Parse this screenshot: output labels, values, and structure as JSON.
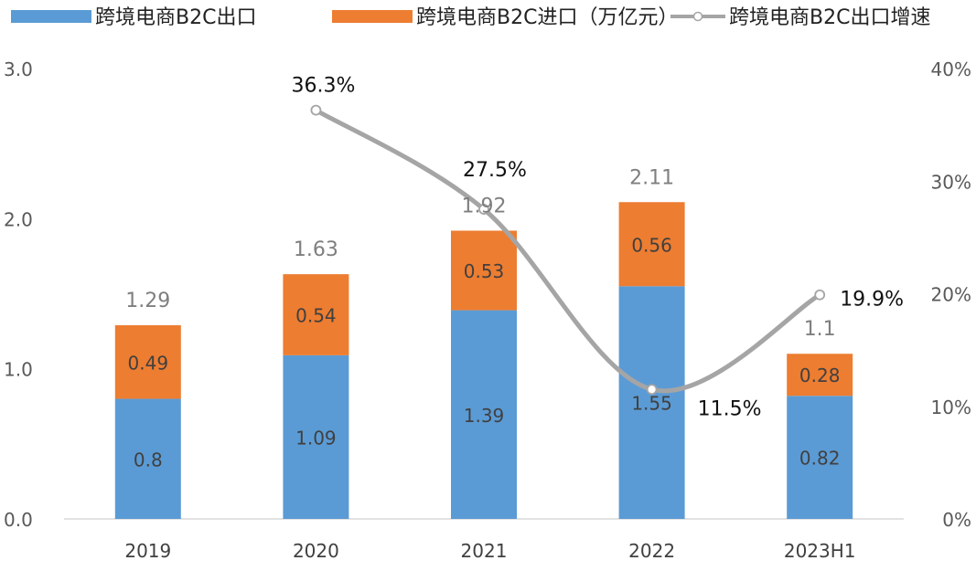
{
  "chart_data": {
    "type": "bar",
    "stacked": true,
    "categories": [
      "2019",
      "2020",
      "2021",
      "2022",
      "2023H1"
    ],
    "series": [
      {
        "name": "跨境电商B2C出口",
        "type": "bar",
        "axis": "left",
        "color": "#5B9BD5",
        "values": [
          0.8,
          1.09,
          1.39,
          1.55,
          0.82
        ],
        "labels": [
          "0.8",
          "1.09",
          "1.39",
          "1.55",
          "0.82"
        ]
      },
      {
        "name": "跨境电商B2C进口（万亿元）",
        "type": "bar",
        "axis": "left",
        "color": "#ED7D31",
        "values": [
          0.49,
          0.54,
          0.53,
          0.56,
          0.28
        ],
        "labels": [
          "0.49",
          "0.54",
          "0.53",
          "0.56",
          "0.28"
        ]
      },
      {
        "name": "跨境电商B2C出口增速",
        "type": "line",
        "axis": "right",
        "color": "#A5A5A5",
        "values": [
          null,
          36.3,
          27.5,
          11.5,
          19.9
        ],
        "labels": [
          "",
          "36.3%",
          "27.5%",
          "11.5%",
          "19.9%"
        ]
      }
    ],
    "totals": [
      "1.29",
      "1.63",
      "1.92",
      "2.11",
      "1.1"
    ],
    "y_left": {
      "ticks": [
        "0.0",
        "1.0",
        "2.0",
        "3.0"
      ],
      "range": [
        0,
        3
      ]
    },
    "y_right": {
      "ticks": [
        "0%",
        "10%",
        "20%",
        "30%",
        "40%"
      ],
      "range": [
        0,
        40
      ]
    },
    "legend_position": "top",
    "grid": false
  }
}
